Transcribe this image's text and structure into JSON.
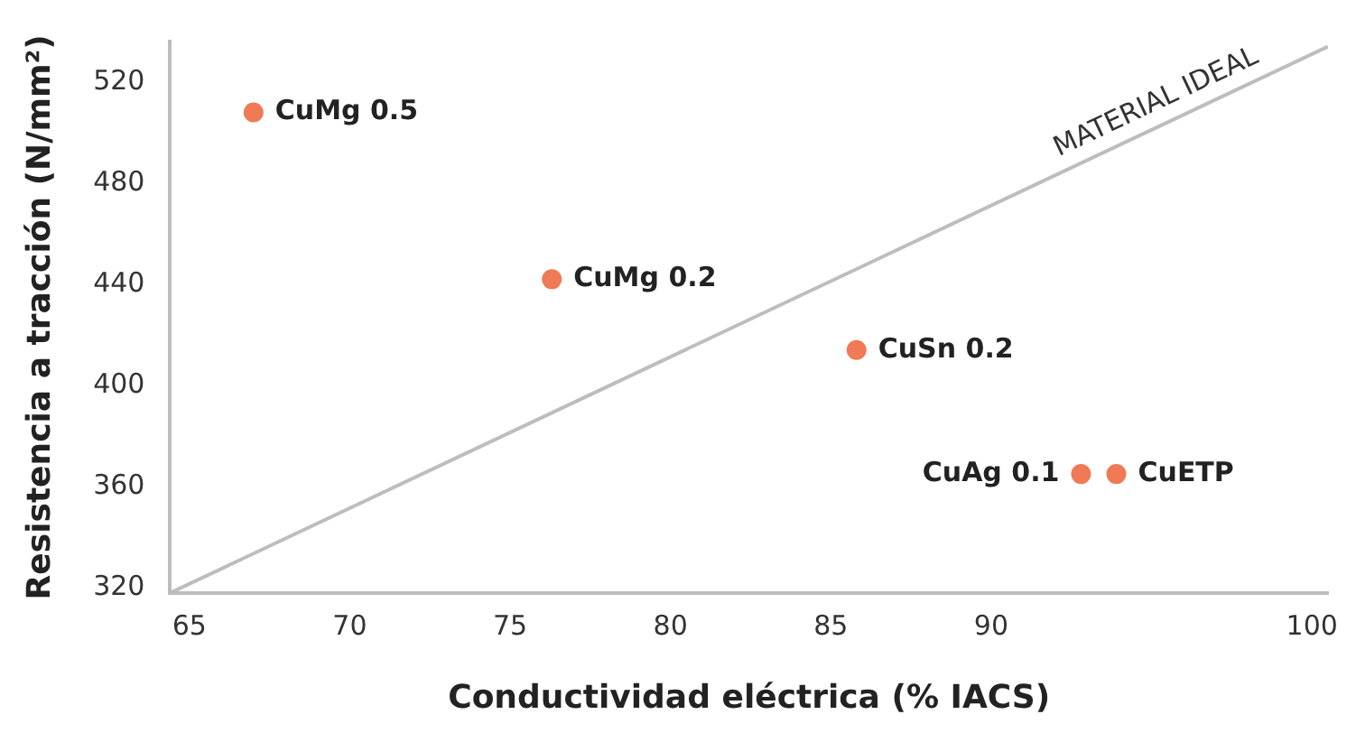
{
  "chart_data": {
    "type": "scatter",
    "xlabel": "Conductividad eléctrica (% IACS)",
    "ylabel": "Resistencia a tracción (N/mm²)",
    "xlim": [
      64.4,
      100.5
    ],
    "xticks": [
      65,
      70,
      75,
      80,
      85,
      90,
      100
    ],
    "ylim": [
      318,
      536
    ],
    "yticks": [
      320,
      360,
      400,
      440,
      480,
      520
    ],
    "grid": false,
    "legend": false,
    "marker": "circle",
    "series": [
      {
        "name": "CuMg 0.5",
        "color": "#f07a55",
        "x": [
          67.0
        ],
        "values": [
          508
        ]
      },
      {
        "name": "CuMg 0.2",
        "color": "#f07a55",
        "x": [
          76.3
        ],
        "values": [
          442
        ]
      },
      {
        "name": "CuSn 0.2",
        "color": "#f07a55",
        "x": [
          85.8
        ],
        "values": [
          414
        ]
      },
      {
        "name": "CuAg 0.1",
        "color": "#f07a55",
        "x": [
          92.8
        ],
        "values": [
          365
        ]
      },
      {
        "name": "CuETP",
        "color": "#f07a55",
        "x": [
          93.9
        ],
        "values": [
          365
        ]
      },
      {
        "type": "line",
        "color": "#bdbdbd",
        "x": [
          64.4,
          100.5
        ],
        "values": [
          318,
          534
        ],
        "marker": "none"
      }
    ],
    "annotations": [
      "MATERIAL IDEAL"
    ]
  }
}
